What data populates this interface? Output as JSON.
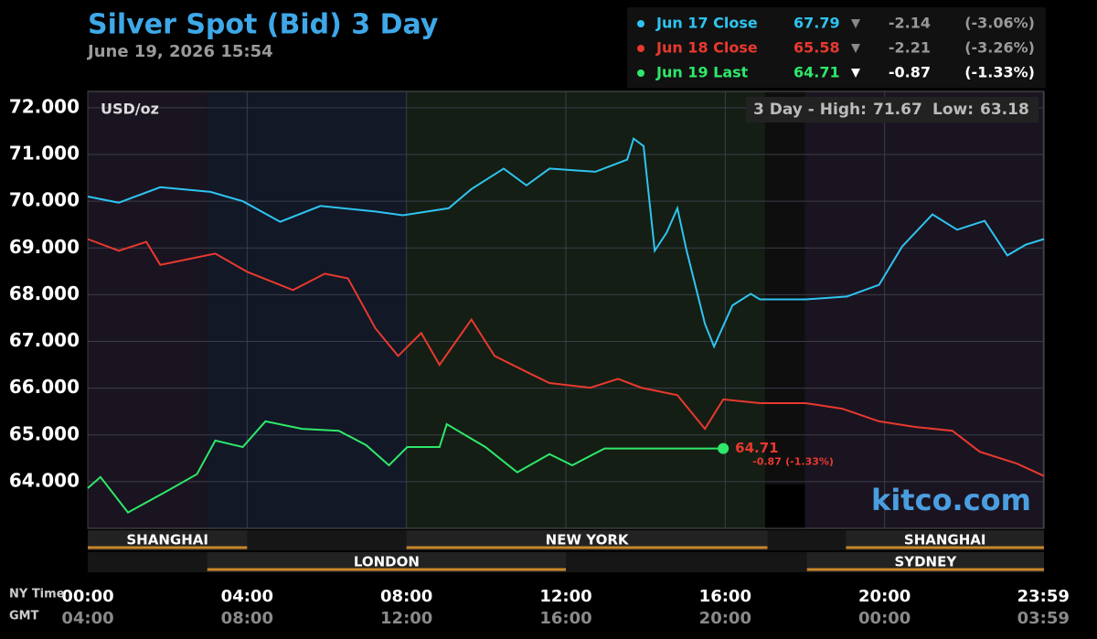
{
  "chart_data": {
    "type": "line",
    "title": "Silver Spot (Bid) 3 Day",
    "subtitle": "June 19, 2026 15:54",
    "unit_label": "USD/oz",
    "range_label": "3 Day - High:",
    "high": 71.67,
    "low_label": "Low:",
    "low": 63.18,
    "watermark": "kitco.com",
    "xlim": [
      0,
      24
    ],
    "ylim": [
      63.0,
      72.35
    ],
    "grid": true,
    "xticks": [
      {
        "value": 0,
        "label": "00:00"
      },
      {
        "value": 4,
        "label": "04:00"
      },
      {
        "value": 8,
        "label": "08:00"
      },
      {
        "value": 12,
        "label": "12:00"
      },
      {
        "value": 16,
        "label": "16:00"
      },
      {
        "value": 20,
        "label": "20:00"
      },
      {
        "value": 23.983,
        "label": "23:59"
      }
    ],
    "gmt_tick_labels": [
      "04:00",
      "08:00",
      "12:00",
      "16:00",
      "20:00",
      "00:00",
      "03:59"
    ],
    "x_axis_label": "NY Time",
    "gmt_axis_label": "GMT",
    "yticks": [
      {
        "value": 64,
        "label": "64.000"
      },
      {
        "value": 65,
        "label": "65.000"
      },
      {
        "value": 66,
        "label": "66.000"
      },
      {
        "value": 67,
        "label": "67.000"
      },
      {
        "value": 68,
        "label": "68.000"
      },
      {
        "value": 69,
        "label": "69.000"
      },
      {
        "value": 70,
        "label": "70.000"
      },
      {
        "value": 71,
        "label": "71.000"
      },
      {
        "value": 72,
        "label": "72.000"
      }
    ],
    "sessions": [
      "SHANGHAI",
      "NEW YORK",
      "SHANGHAI",
      "LONDON",
      "SYDNEY"
    ],
    "series": [
      {
        "name": "Jun 17 Close",
        "color": "#2ec4f0",
        "last": 67.79,
        "change": -2.14,
        "change_pct": "(-3.06%)",
        "x": [
          0,
          0.78,
          1.82,
          3.08,
          3.89,
          4.83,
          5.84,
          7.22,
          7.91,
          9.06,
          9.63,
          10.44,
          11.01,
          11.59,
          12.74,
          13.54,
          13.7,
          13.95,
          14.23,
          14.53,
          14.8,
          15.03,
          15.49,
          15.72,
          16.18,
          16.64,
          16.87,
          18.02,
          19.05,
          19.86,
          20.44,
          21.2,
          21.82,
          22.51,
          23.08,
          23.54,
          24
        ],
        "values": [
          70.1,
          69.97,
          70.3,
          70.2,
          70.0,
          69.56,
          69.9,
          69.78,
          69.7,
          69.85,
          70.26,
          70.7,
          70.34,
          70.7,
          70.63,
          70.89,
          71.34,
          71.18,
          68.94,
          69.33,
          69.85,
          68.94,
          67.38,
          66.89,
          67.77,
          68.02,
          67.9,
          67.9,
          67.96,
          68.21,
          69.03,
          69.72,
          69.39,
          69.58,
          68.84,
          69.07,
          69.19
        ]
      },
      {
        "name": "Jun 18 Close",
        "color": "#e8392f",
        "last": 65.58,
        "change": -2.21,
        "change_pct": "(-3.26%)",
        "x": [
          0,
          0.78,
          1.47,
          1.82,
          3.2,
          4.0,
          5.15,
          5.95,
          6.53,
          7.22,
          7.79,
          8.37,
          8.83,
          9.63,
          10.21,
          11.13,
          11.59,
          12.62,
          13.31,
          13.89,
          14.8,
          15.49,
          15.95,
          16.87,
          18.02,
          18.94,
          19.86,
          20.78,
          21.7,
          22.39,
          23.31,
          24
        ],
        "values": [
          69.19,
          68.94,
          69.13,
          68.64,
          68.88,
          68.49,
          68.1,
          68.45,
          68.35,
          67.28,
          66.69,
          67.18,
          66.5,
          67.47,
          66.69,
          66.3,
          66.11,
          66.01,
          66.2,
          66.01,
          65.85,
          65.13,
          65.76,
          65.68,
          65.68,
          65.56,
          65.29,
          65.17,
          65.09,
          64.64,
          64.39,
          64.12
        ]
      },
      {
        "name": "Jun 19 Last",
        "color": "#2ee86a",
        "last": 64.71,
        "change": -0.87,
        "change_pct": "(-1.33%)",
        "x": [
          0,
          0.32,
          1.01,
          1.93,
          2.74,
          3.2,
          3.89,
          4.46,
          5.38,
          6.3,
          6.99,
          7.56,
          8.02,
          8.83,
          9.01,
          9.98,
          10.78,
          11.59,
          12.16,
          12.97,
          15.95
        ],
        "values": [
          63.86,
          64.1,
          63.34,
          63.77,
          64.16,
          64.88,
          64.74,
          65.29,
          65.13,
          65.09,
          64.78,
          64.35,
          64.74,
          64.74,
          65.23,
          64.74,
          64.2,
          64.59,
          64.35,
          64.71,
          64.71
        ]
      }
    ]
  }
}
